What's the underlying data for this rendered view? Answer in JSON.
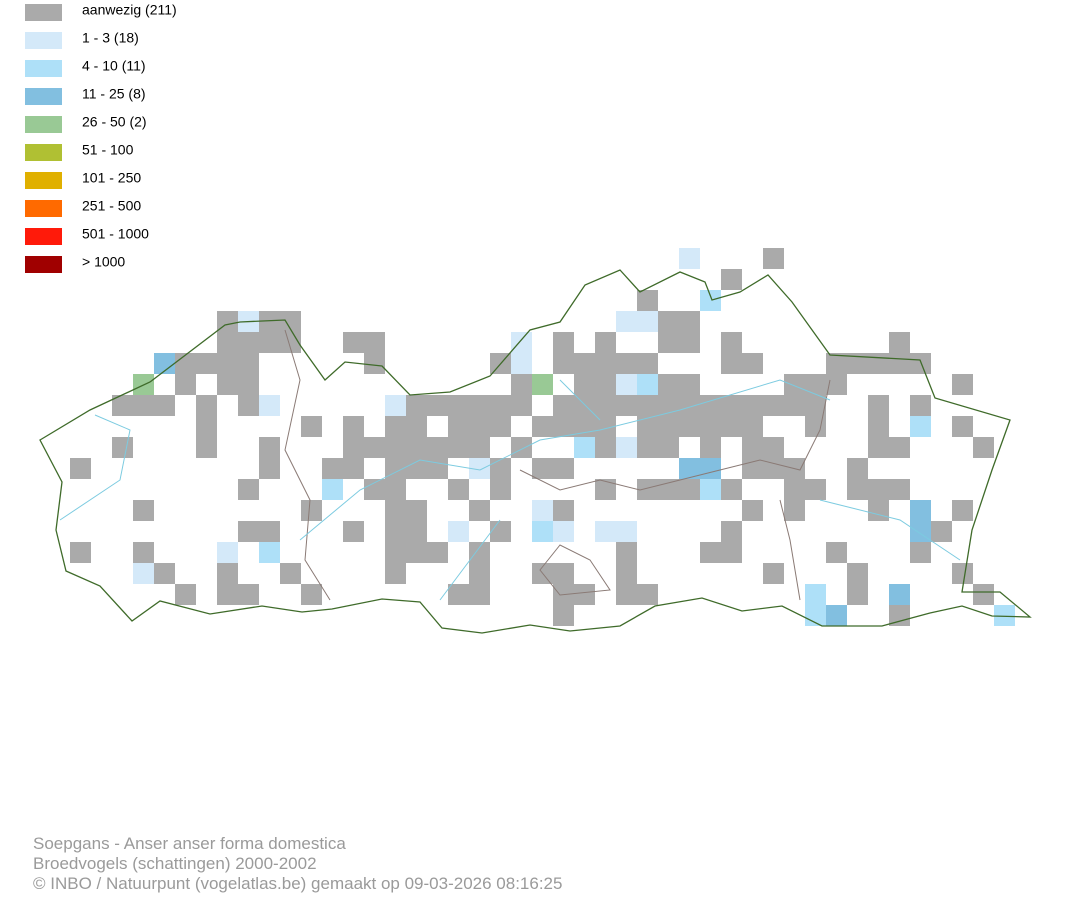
{
  "legend": {
    "entries": [
      {
        "label": "aanwezig (211)",
        "color": "#aaaaaa"
      },
      {
        "label": "1 - 3 (18)",
        "color": "#d4e9f9"
      },
      {
        "label": "4 - 10 (11)",
        "color": "#aee0f8"
      },
      {
        "label": "11 - 25 (8)",
        "color": "#82bfe0"
      },
      {
        "label": "26 - 50 (2)",
        "color": "#99c995"
      },
      {
        "label": "51 - 100",
        "color": "#b0c033"
      },
      {
        "label": "101 - 250",
        "color": "#e0b000"
      },
      {
        "label": "251 - 500",
        "color": "#ff6a00"
      },
      {
        "label": "501 - 1000",
        "color": "#ff1a0a"
      },
      {
        "label": "> 1000",
        "color": "#a00000"
      }
    ]
  },
  "footer": {
    "lines": [
      "Soepgans - Anser anser forma domestica",
      "Broedvogels (schattingen) 2000-2002",
      "© INBO / Natuurpunt (vogelatlas.be) gemaakt op 09-03-2026 08:16:25"
    ]
  }
}
